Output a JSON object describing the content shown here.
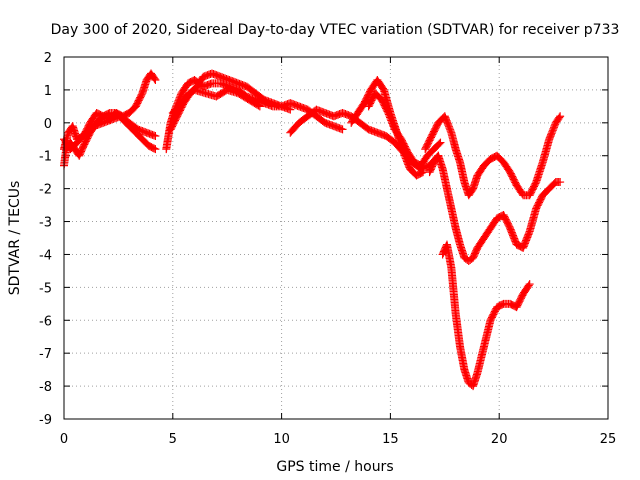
{
  "chart_data": {
    "type": "scatter",
    "title": "Day 300 of 2020, Sidereal Day-to-day VTEC variation (SDTVAR) for receiver p733",
    "xlabel": "GPS time / hours",
    "ylabel": "SDTVAR / TECUs",
    "xlim": [
      0,
      25
    ],
    "ylim": [
      -9,
      2
    ],
    "xticks": [
      0,
      5,
      10,
      15,
      20,
      25
    ],
    "yticks": [
      -9,
      -8,
      -7,
      -6,
      -5,
      -4,
      -3,
      -2,
      -1,
      0,
      1,
      2
    ],
    "grid": true,
    "marker": "+",
    "color": "#ff0000",
    "series": [
      {
        "x": [
          0.0,
          0.1,
          0.3,
          0.5,
          0.7,
          0.9,
          1.2,
          1.5,
          1.8,
          2.1,
          2.4,
          2.7,
          3.0,
          3.3,
          3.6,
          3.9,
          4.2
        ],
        "y": [
          -1.3,
          -0.8,
          -0.6,
          -0.8,
          -1.0,
          -0.7,
          -0.3,
          0.0,
          0.2,
          0.3,
          0.3,
          0.1,
          -0.1,
          -0.3,
          -0.5,
          -0.7,
          -0.8
        ]
      },
      {
        "x": [
          0.0,
          0.2,
          0.4,
          0.6,
          0.9,
          1.2,
          1.5,
          1.8,
          2.1,
          2.4,
          2.7,
          3.0,
          3.3,
          3.6,
          3.8,
          4.0,
          4.2
        ],
        "y": [
          -0.8,
          -0.3,
          -0.1,
          -0.5,
          -0.4,
          0.0,
          0.3,
          0.2,
          0.1,
          0.3,
          0.2,
          0.3,
          0.5,
          0.9,
          1.3,
          1.5,
          1.3
        ]
      },
      {
        "x": [
          0.0,
          0.3,
          0.6,
          1.0,
          1.4,
          1.8,
          2.2,
          2.6,
          3.0,
          3.4,
          3.8,
          4.2
        ],
        "y": [
          -0.5,
          -0.8,
          -0.6,
          -0.3,
          -0.1,
          0.0,
          0.1,
          0.2,
          0.0,
          -0.2,
          -0.3,
          -0.4
        ]
      },
      {
        "x": [
          4.7,
          4.9,
          5.1,
          5.4,
          5.7,
          6.0,
          6.4,
          6.8,
          7.2,
          7.6,
          8.0,
          8.4,
          8.8,
          9.2,
          9.6,
          10.0,
          10.4,
          10.8,
          11.2,
          11.6,
          12.0,
          12.4,
          12.8
        ],
        "y": [
          -0.8,
          0.0,
          0.4,
          0.9,
          1.2,
          1.3,
          1.1,
          1.2,
          1.2,
          1.1,
          1.0,
          0.8,
          0.7,
          0.6,
          0.5,
          0.5,
          0.6,
          0.5,
          0.4,
          0.2,
          0.0,
          -0.1,
          -0.2
        ]
      },
      {
        "x": [
          4.9,
          5.2,
          5.5,
          5.8,
          6.1,
          6.4,
          6.8,
          7.2,
          7.6,
          8.0,
          8.4,
          8.8,
          9.2,
          9.6,
          10.0,
          10.4
        ],
        "y": [
          -0.2,
          0.2,
          0.6,
          0.9,
          1.1,
          1.4,
          1.5,
          1.4,
          1.3,
          1.2,
          1.1,
          0.9,
          0.7,
          0.6,
          0.5,
          0.4
        ]
      },
      {
        "x": [
          5.0,
          5.3,
          5.6,
          6.0,
          6.5,
          7.0,
          7.5,
          8.0,
          8.5,
          9.0
        ],
        "y": [
          0.3,
          0.5,
          0.8,
          1.0,
          0.9,
          0.8,
          1.0,
          0.9,
          0.7,
          0.5
        ]
      },
      {
        "x": [
          10.4,
          10.8,
          11.2,
          11.6,
          12.0,
          12.4,
          12.8,
          13.2,
          13.6,
          14.0,
          14.4,
          14.8,
          15.2,
          15.6,
          16.0,
          16.4,
          16.8,
          17.2
        ],
        "y": [
          -0.3,
          0.0,
          0.2,
          0.4,
          0.3,
          0.2,
          0.3,
          0.2,
          0.0,
          -0.2,
          -0.3,
          -0.4,
          -0.6,
          -0.9,
          -1.2,
          -1.4,
          -1.3,
          -1.0
        ]
      },
      {
        "x": [
          13.2,
          13.5,
          13.8,
          14.1,
          14.4,
          14.7,
          15.0,
          15.3,
          15.6,
          15.9,
          16.2,
          16.5
        ],
        "y": [
          0.0,
          0.3,
          0.6,
          1.0,
          1.3,
          1.0,
          0.3,
          -0.3,
          -0.9,
          -1.4,
          -1.6,
          -1.5
        ]
      },
      {
        "x": [
          14.0,
          14.3,
          14.6,
          14.9,
          15.2,
          15.5,
          15.8,
          16.1,
          16.4,
          16.7,
          17.0,
          17.3
        ],
        "y": [
          0.5,
          0.9,
          0.7,
          0.3,
          -0.2,
          -0.5,
          -0.9,
          -1.2,
          -1.3,
          -1.0,
          -0.8,
          -0.6
        ]
      },
      {
        "x": [
          16.6,
          16.9,
          17.2,
          17.5,
          17.8,
          18.0,
          18.2,
          18.4,
          18.6,
          18.8,
          19.0,
          19.3,
          19.6,
          19.9,
          20.2,
          20.5,
          20.8,
          21.1,
          21.4,
          21.7,
          22.0,
          22.3,
          22.6,
          22.8
        ],
        "y": [
          -0.8,
          -0.4,
          0.0,
          0.2,
          -0.3,
          -0.8,
          -1.2,
          -1.8,
          -2.2,
          -2.0,
          -1.6,
          -1.3,
          -1.1,
          -1.0,
          -1.2,
          -1.5,
          -1.9,
          -2.2,
          -2.2,
          -1.8,
          -1.2,
          -0.5,
          0.0,
          0.2
        ]
      },
      {
        "x": [
          16.8,
          17.0,
          17.2,
          17.4,
          17.6,
          17.8,
          18.0,
          18.2,
          18.4,
          18.6,
          18.8,
          19.0,
          19.3,
          19.6,
          19.9,
          20.2,
          20.5,
          20.8,
          21.1,
          21.4,
          21.7,
          22.0,
          22.3,
          22.6,
          22.8
        ],
        "y": [
          -1.5,
          -1.2,
          -1.0,
          -1.4,
          -2.0,
          -2.6,
          -3.2,
          -3.7,
          -4.1,
          -4.2,
          -4.1,
          -3.8,
          -3.5,
          -3.2,
          -2.9,
          -2.8,
          -3.2,
          -3.7,
          -3.8,
          -3.3,
          -2.6,
          -2.2,
          -2.0,
          -1.8,
          -1.8
        ]
      },
      {
        "x": [
          17.4,
          17.6,
          17.8,
          18.0,
          18.2,
          18.4,
          18.6,
          18.8,
          19.0,
          19.3,
          19.6,
          19.9,
          20.2,
          20.5,
          20.8,
          21.1,
          21.4
        ],
        "y": [
          -4.0,
          -3.7,
          -4.4,
          -5.8,
          -6.8,
          -7.5,
          -7.9,
          -8.0,
          -7.6,
          -6.8,
          -6.0,
          -5.6,
          -5.5,
          -5.5,
          -5.6,
          -5.2,
          -4.9
        ]
      }
    ]
  }
}
